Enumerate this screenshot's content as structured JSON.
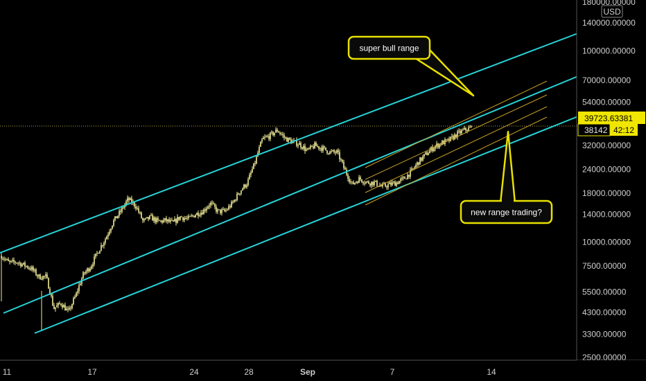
{
  "currency": "USD",
  "colors": {
    "background": "#000000",
    "channel": "#26d4d8",
    "sub_channel": "#c9a227",
    "candle": "#f5ee9a",
    "callout_fill": "#0a0a0a",
    "callout_border": "#e8e000",
    "price_tag": "#f0e600"
  },
  "price_tags": {
    "last_price": "39723.63381",
    "current_price": "38142",
    "countdown": "42:12"
  },
  "annotations": {
    "super_bull": "super bull range",
    "new_range": "new range trading?"
  },
  "chart_data": {
    "type": "candlestick",
    "scale": "log",
    "y_ticks": [
      "180000.00000",
      "140000.00000",
      "100000.00000",
      "70000.00000",
      "54000.00000",
      "32000.00000",
      "24000.00000",
      "18000.00000",
      "14000.00000",
      "10000.00000",
      "7500.00000",
      "5500.00000",
      "4300.00000",
      "3300.00000",
      "2500.00000"
    ],
    "x_ticks": [
      {
        "label": "11",
        "bold": false
      },
      {
        "label": "17",
        "bold": false
      },
      {
        "label": "24",
        "bold": false
      },
      {
        "label": "28",
        "bold": false
      },
      {
        "label": "Sep",
        "bold": true
      },
      {
        "label": "7",
        "bold": false
      },
      {
        "label": "14",
        "bold": false
      }
    ],
    "price_path": [
      [
        8500,
        7800
      ],
      [
        7900,
        7600
      ],
      [
        7300,
        6600
      ],
      [
        6600,
        4500
      ],
      [
        4800,
        4300
      ],
      [
        5300,
        6800
      ],
      [
        7500,
        9000
      ],
      [
        10500,
        12800
      ],
      [
        14500,
        16800
      ],
      [
        15500,
        12800
      ],
      [
        13500,
        12800
      ],
      [
        13000,
        12600
      ],
      [
        13600,
        13200
      ],
      [
        14000,
        14500
      ],
      [
        16000,
        14500
      ],
      [
        14500,
        16000
      ],
      [
        18500,
        20500
      ],
      [
        26000,
        34500
      ],
      [
        36000,
        38500
      ],
      [
        35000,
        33500
      ],
      [
        32500,
        30000
      ],
      [
        32000,
        31000
      ],
      [
        29500,
        29500
      ],
      [
        24000,
        20000
      ],
      [
        21500,
        20500
      ],
      [
        20500,
        19500
      ],
      [
        20000,
        20500
      ],
      [
        21500,
        23500
      ],
      [
        26500,
        29000
      ],
      [
        31500,
        33000
      ],
      [
        34000,
        36500
      ],
      [
        38500,
        39600
      ]
    ]
  }
}
